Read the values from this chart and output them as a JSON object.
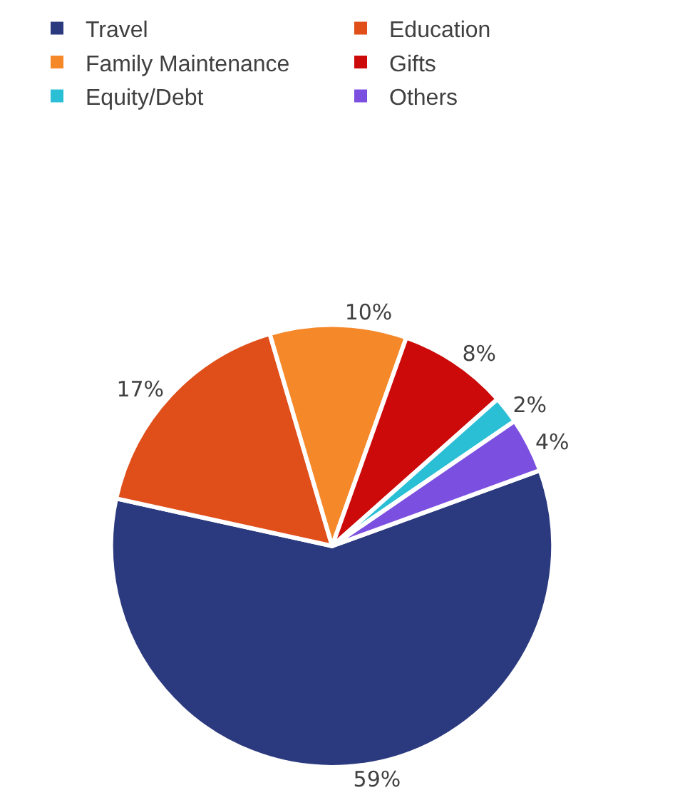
{
  "chart_data": {
    "type": "pie",
    "categories": [
      "Travel",
      "Education",
      "Family Maintenance",
      "Gifts",
      "Equity/Debt",
      "Others"
    ],
    "values": [
      59,
      17,
      10,
      8,
      2,
      4
    ],
    "colors": [
      "#2b3a7e",
      "#e04e1a",
      "#f5892a",
      "#cc0a0a",
      "#2bbfd6",
      "#7b4fe0"
    ],
    "value_labels": [
      "59%",
      "17%",
      "10%",
      "8%",
      "2%",
      "4%"
    ],
    "legend": "top"
  }
}
